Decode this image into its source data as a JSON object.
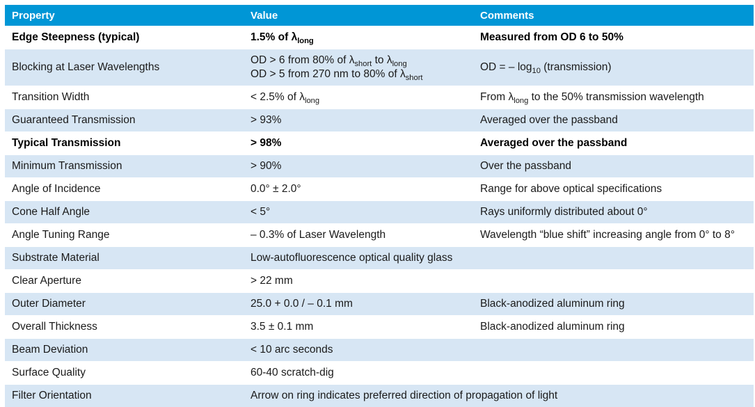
{
  "table": {
    "headers": [
      "Property",
      "Value",
      "Comments"
    ],
    "rows": [
      {
        "bold": true,
        "cells": [
          [
            {
              "t": "Edge Steepness (typical)"
            }
          ],
          [
            {
              "t": "1.5% of λ"
            },
            {
              "sub": "long"
            }
          ],
          [
            {
              "t": "Measured from OD 6 to 50%"
            }
          ]
        ]
      },
      {
        "tall": true,
        "cells": [
          [
            {
              "t": "Blocking at Laser Wavelengths"
            }
          ],
          [
            [
              {
                "t": "OD > 6 from 80% of λ"
              },
              {
                "sub": "short"
              },
              {
                "t": " to λ"
              },
              {
                "sub": "long"
              }
            ],
            [
              {
                "t": "OD > 5 from 270 nm to 80% of λ"
              },
              {
                "sub": "short"
              }
            ]
          ],
          [
            {
              "t": "OD = – log"
            },
            {
              "sub": "10"
            },
            {
              "t": " (transmission)"
            }
          ]
        ]
      },
      {
        "cells": [
          [
            {
              "t": "Transition Width"
            }
          ],
          [
            {
              "t": "< 2.5% of λ"
            },
            {
              "sub": "long"
            }
          ],
          [
            {
              "t": "From λ"
            },
            {
              "sub": "long"
            },
            {
              "t": " to the 50% transmission wavelength"
            }
          ]
        ]
      },
      {
        "cells": [
          [
            {
              "t": "Guaranteed Transmission"
            }
          ],
          [
            {
              "t": "> 93%"
            }
          ],
          [
            {
              "t": "Averaged over the passband"
            }
          ]
        ]
      },
      {
        "bold": true,
        "cells": [
          [
            {
              "t": "Typical Transmission"
            }
          ],
          [
            {
              "t": "> 98%"
            }
          ],
          [
            {
              "t": "Averaged over the passband"
            }
          ]
        ]
      },
      {
        "cells": [
          [
            {
              "t": "Minimum Transmission"
            }
          ],
          [
            {
              "t": "> 90%"
            }
          ],
          [
            {
              "t": "Over the passband"
            }
          ]
        ]
      },
      {
        "cells": [
          [
            {
              "t": "Angle of Incidence"
            }
          ],
          [
            {
              "t": " 0.0° ± 2.0°"
            }
          ],
          [
            {
              "t": "Range for above optical specifications"
            }
          ]
        ]
      },
      {
        "cells": [
          [
            {
              "t": "Cone Half Angle"
            }
          ],
          [
            {
              "t": "< 5°"
            }
          ],
          [
            {
              "t": "Rays uniformly distributed about 0°"
            }
          ]
        ]
      },
      {
        "cells": [
          [
            {
              "t": "Angle Tuning Range"
            }
          ],
          [
            {
              "t": "– 0.3% of Laser Wavelength"
            }
          ],
          [
            {
              "t": "Wavelength “blue shift” increasing angle from 0° to 8°"
            }
          ]
        ]
      },
      {
        "cells": [
          [
            {
              "t": "Substrate Material"
            }
          ],
          [
            {
              "t": "Low-autofluorescence optical quality glass"
            }
          ],
          [
            {
              "t": ""
            }
          ]
        ]
      },
      {
        "cells": [
          [
            {
              "t": "Clear Aperture"
            }
          ],
          [
            {
              "t": "> 22 mm"
            }
          ],
          [
            {
              "t": ""
            }
          ]
        ]
      },
      {
        "cells": [
          [
            {
              "t": "Outer Diameter"
            }
          ],
          [
            {
              "t": "25.0 + 0.0 / – 0.1 mm"
            }
          ],
          [
            {
              "t": "Black-anodized aluminum ring"
            }
          ]
        ]
      },
      {
        "cells": [
          [
            {
              "t": "Overall Thickness"
            }
          ],
          [
            {
              "t": "3.5 ± 0.1 mm"
            }
          ],
          [
            {
              "t": "Black-anodized aluminum ring"
            }
          ]
        ]
      },
      {
        "cells": [
          [
            {
              "t": "Beam Deviation"
            }
          ],
          [
            {
              "t": "< 10 arc seconds"
            }
          ],
          [
            {
              "t": ""
            }
          ]
        ]
      },
      {
        "cells": [
          [
            {
              "t": "Surface Quality"
            }
          ],
          [
            {
              "t": "60-40 scratch-dig"
            }
          ],
          [
            {
              "t": ""
            }
          ]
        ]
      },
      {
        "span": true,
        "cells": [
          [
            {
              "t": "Filter Orientation"
            }
          ],
          [
            {
              "t": "Arrow on ring indicates preferred direction of propagation of light"
            }
          ]
        ]
      }
    ]
  }
}
